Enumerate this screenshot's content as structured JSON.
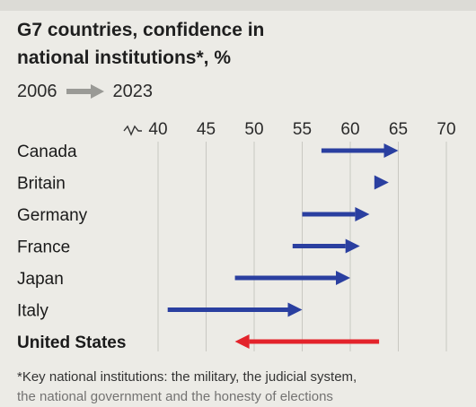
{
  "chart_data": {
    "type": "arrow",
    "title": "G7 countries, confidence in national institutions*, %",
    "title_lines": [
      "G7 countries, confidence in",
      "national institutions*, %"
    ],
    "legend": {
      "from": "2006",
      "to": "2023"
    },
    "x_ticks": [
      40,
      45,
      50,
      55,
      60,
      65,
      70
    ],
    "xlim": [
      40,
      70
    ],
    "axis_break": true,
    "grid": true,
    "categories": [
      "Canada",
      "Britain",
      "Germany",
      "France",
      "Japan",
      "Italy",
      "United States"
    ],
    "series": [
      {
        "values_2006": [
          57,
          63,
          55,
          54,
          48,
          41,
          63
        ],
        "values_2023": [
          65,
          64,
          62,
          61,
          60,
          55,
          48
        ]
      }
    ],
    "highlight": "United States",
    "colors": {
      "increase": "#2a3fa0",
      "decrease": "#e3232b",
      "legend_arrow": "#9a9a96",
      "grid": "#c9c8c2"
    }
  },
  "footnote": {
    "line1": "*Key national institutions: the military, the judicial system,",
    "line2": "the national government and the honesty of elections"
  }
}
